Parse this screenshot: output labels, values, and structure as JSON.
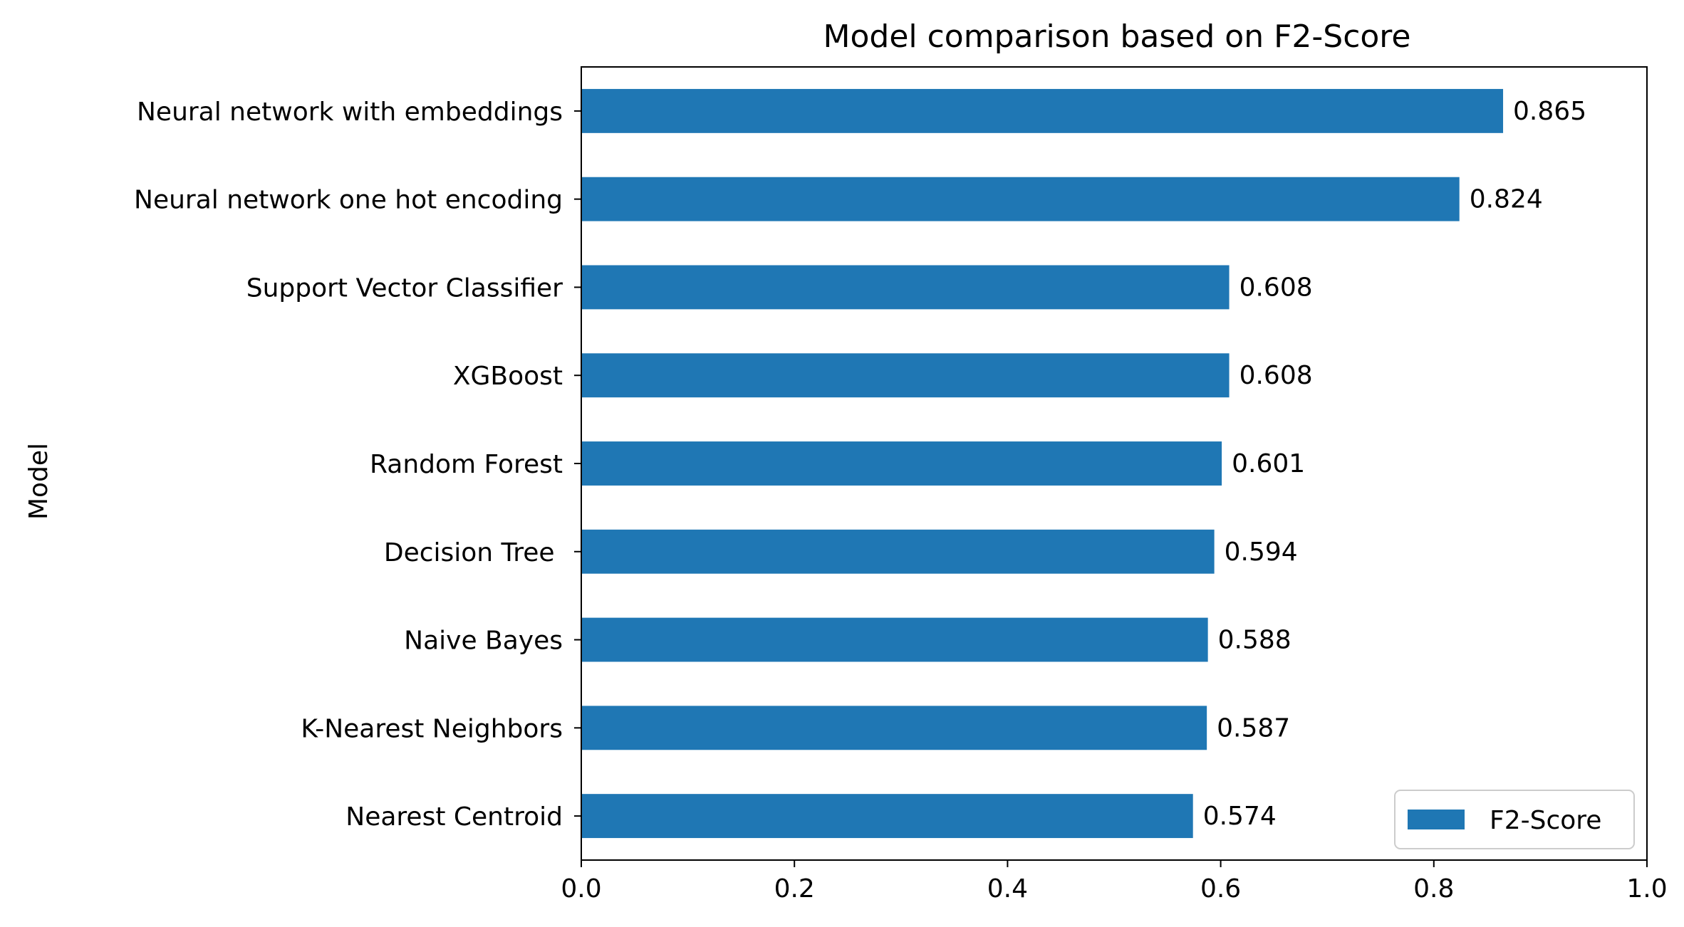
{
  "chart_data": {
    "type": "bar",
    "orientation": "horizontal",
    "title": "Model comparison based on F2-Score",
    "xlabel": "",
    "ylabel": "Model",
    "categories": [
      "Neural network with embeddings",
      "Neural network one hot encoding",
      "Support Vector Classifier",
      "XGBoost",
      "Random Forest",
      "Decision Tree ",
      "Naive Bayes",
      "K-Nearest Neighbors",
      "Nearest Centroid"
    ],
    "series": [
      {
        "name": "F2-Score",
        "color": "#1f77b4",
        "values": [
          0.865,
          0.824,
          0.608,
          0.608,
          0.601,
          0.594,
          0.588,
          0.587,
          0.574
        ],
        "labels": [
          "0.865",
          "0.824",
          "0.608",
          "0.608",
          "0.601",
          "0.594",
          "0.588",
          "0.587",
          "0.574"
        ]
      }
    ],
    "xlim": [
      0.0,
      1.0
    ],
    "xticks": [
      0.0,
      0.2,
      0.4,
      0.6,
      0.8,
      1.0
    ],
    "xtick_labels": [
      "0.0",
      "0.2",
      "0.4",
      "0.6",
      "0.8",
      "1.0"
    ],
    "grid": false,
    "legend": {
      "position": "bottom-right",
      "entries": [
        "F2-Score"
      ]
    }
  }
}
